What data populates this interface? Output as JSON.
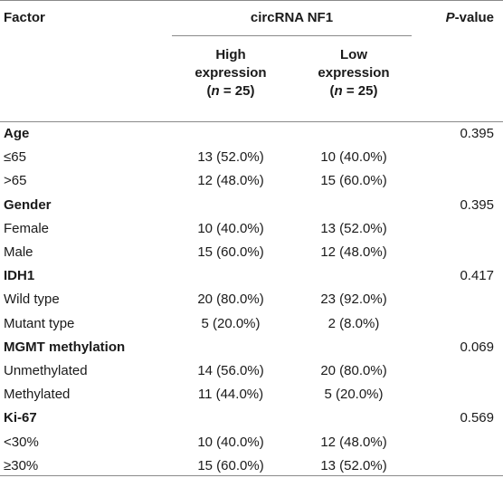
{
  "header": {
    "factor": "Factor",
    "group": "circRNA NF1",
    "p_value_italic": "P",
    "p_value_rest": "-value",
    "high": {
      "line1": "High",
      "line2": "expression",
      "n_open": "(",
      "n_italic": "n",
      "n_rest": " = 25)"
    },
    "low": {
      "line1": "Low",
      "line2": "expression",
      "n_open": "(",
      "n_italic": "n",
      "n_rest": " = 25)"
    }
  },
  "rows": [
    {
      "factor": "Age",
      "bold": true,
      "high": "",
      "low": "",
      "p": "0.395"
    },
    {
      "factor": "≤65",
      "bold": false,
      "high": "13 (52.0%)",
      "low": "10 (40.0%)",
      "p": ""
    },
    {
      "factor": ">65",
      "bold": false,
      "high": "12 (48.0%)",
      "low": "15 (60.0%)",
      "p": ""
    },
    {
      "factor": "Gender",
      "bold": true,
      "high": "",
      "low": "",
      "p": "0.395"
    },
    {
      "factor": "Female",
      "bold": false,
      "high": "10 (40.0%)",
      "low": "13 (52.0%)",
      "p": ""
    },
    {
      "factor": "Male",
      "bold": false,
      "high": "15 (60.0%)",
      "low": "12 (48.0%)",
      "p": ""
    },
    {
      "factor": "IDH1",
      "bold": true,
      "high": "",
      "low": "",
      "p": "0.417"
    },
    {
      "factor": "Wild type",
      "bold": false,
      "high": "20 (80.0%)",
      "low": "23 (92.0%)",
      "p": ""
    },
    {
      "factor": "Mutant type",
      "bold": false,
      "high": "5 (20.0%)",
      "low": "2 (8.0%)",
      "p": ""
    },
    {
      "factor": "MGMT methylation",
      "bold": true,
      "high": "",
      "low": "",
      "p": "0.069"
    },
    {
      "factor": "Unmethylated",
      "bold": false,
      "high": "14 (56.0%)",
      "low": "20 (80.0%)",
      "p": ""
    },
    {
      "factor": "Methylated",
      "bold": false,
      "high": "11 (44.0%)",
      "low": "5 (20.0%)",
      "p": ""
    },
    {
      "factor": "Ki-67",
      "bold": true,
      "high": "",
      "low": "",
      "p": "0.569"
    },
    {
      "factor": "<30%",
      "bold": false,
      "high": "10 (40.0%)",
      "low": "12 (48.0%)",
      "p": ""
    },
    {
      "factor": "≥30%",
      "bold": false,
      "high": "15 (60.0%)",
      "low": "13 (52.0%)",
      "p": ""
    }
  ]
}
